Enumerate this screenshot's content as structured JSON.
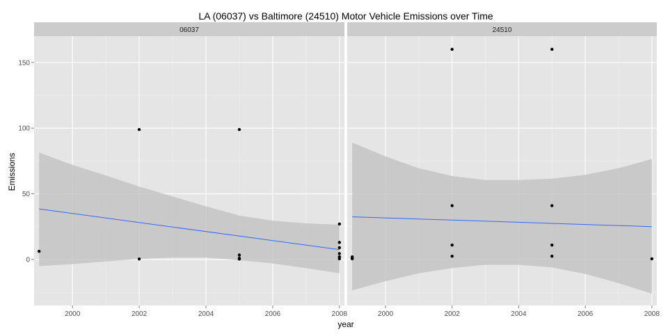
{
  "chart_data": {
    "type": "scatter",
    "title": "LA (06037) vs Baltimore (24510) Motor Vehicle Emissions over Time",
    "xlabel": "year",
    "ylabel": "Emissions",
    "xlim": [
      1998.85,
      2008.15
    ],
    "ylim": [
      -35,
      170
    ],
    "x_ticks": [
      2000,
      2002,
      2004,
      2006,
      2008
    ],
    "y_ticks": [
      0,
      50,
      100,
      150
    ],
    "grid": true,
    "colors": {
      "panel_bg": "#e5e5e5",
      "strip_bg": "#cccccc",
      "grid_major": "#ffffff",
      "grid_minor": "#f2f2f2",
      "point": "#000000",
      "smooth_line": "#3366ff",
      "ribbon": "#c4c4c4"
    },
    "panels": [
      {
        "label": "06037",
        "points": [
          {
            "x": 1999,
            "y": 6.2
          },
          {
            "x": 2002,
            "y": 98.9
          },
          {
            "x": 2002,
            "y": 0.4
          },
          {
            "x": 2005,
            "y": 98.9
          },
          {
            "x": 2005,
            "y": 3.4
          },
          {
            "x": 2005,
            "y": 1.0
          },
          {
            "x": 2005,
            "y": 0.3
          },
          {
            "x": 2008,
            "y": 27.0
          },
          {
            "x": 2008,
            "y": 13.0
          },
          {
            "x": 2008,
            "y": 9.0
          },
          {
            "x": 2008,
            "y": 4.5
          },
          {
            "x": 2008,
            "y": 2.0
          },
          {
            "x": 2008,
            "y": 0.5
          }
        ],
        "smooth": {
          "x": [
            1999,
            2008
          ],
          "y": [
            38.5,
            7.5
          ]
        },
        "ribbon": {
          "x": [
            1999,
            2000,
            2001,
            2002,
            2003,
            2004,
            2005,
            2006,
            2007,
            2008
          ],
          "lower": [
            -5,
            -3.5,
            -1.5,
            0.5,
            1.5,
            1.5,
            -0.5,
            -3,
            -6.5,
            -10.5
          ],
          "upper": [
            81.5,
            72,
            64,
            55.5,
            48,
            40.5,
            33.5,
            29.5,
            27.5,
            26.5
          ]
        }
      },
      {
        "label": "24510",
        "points": [
          {
            "x": 1999,
            "y": 2.0
          },
          {
            "x": 1999,
            "y": 1.0
          },
          {
            "x": 1999,
            "y": 0.5
          },
          {
            "x": 2002,
            "y": 160.0
          },
          {
            "x": 2002,
            "y": 41.0
          },
          {
            "x": 2002,
            "y": 11.0
          },
          {
            "x": 2002,
            "y": 2.5
          },
          {
            "x": 2005,
            "y": 160.0
          },
          {
            "x": 2005,
            "y": 41.0
          },
          {
            "x": 2005,
            "y": 11.0
          },
          {
            "x": 2005,
            "y": 2.5
          },
          {
            "x": 2008,
            "y": 0.5
          }
        ],
        "smooth": {
          "x": [
            1999,
            2008
          ],
          "y": [
            32.5,
            25
          ]
        },
        "ribbon": {
          "x": [
            1999,
            2000,
            2001,
            2002,
            2003,
            2004,
            2005,
            2006,
            2007,
            2008
          ],
          "lower": [
            -23.5,
            -16.5,
            -10.5,
            -6.5,
            -4,
            -4,
            -6,
            -11,
            -18,
            -26
          ],
          "upper": [
            89,
            78.5,
            69.5,
            63.5,
            60.5,
            60.5,
            61.5,
            64.5,
            69.5,
            76.5
          ]
        }
      }
    ]
  }
}
